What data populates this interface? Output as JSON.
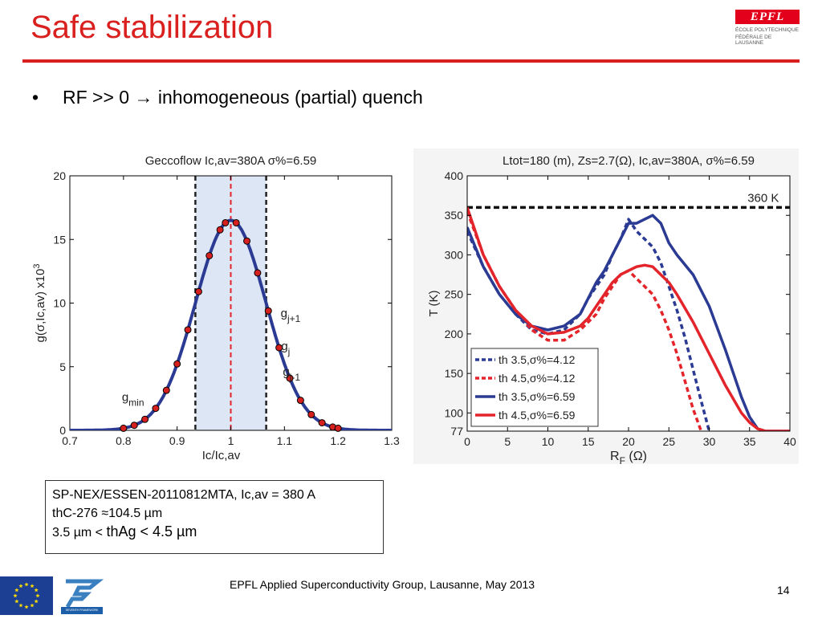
{
  "slide": {
    "title": "Safe stabilization",
    "bullet": "RF >> 0 → inhomogeneous (partial) quench",
    "logo_text": "EPFL",
    "logo_line1": "ÉCOLE POLYTECHNIQUE",
    "logo_line2": "FÉDÉRALE DE LAUSANNE",
    "note_line1": "SP-NEX/ESSEN-20110812MTA, Ic,av = 380 A",
    "note_line2": "thC-276 ≈104.5 µm",
    "note_line3a": "3.5 µm < ",
    "note_line3b": "thAg < 4.5 µm",
    "footer": "EPFL Applied Superconductivity Group, Lausanne, May 2013",
    "page_number": "14",
    "fp7_text": "SEVENTH FRAMEWORK PROGRAMME",
    "colors": {
      "accent": "#d9201f",
      "blue": "#2b3a93",
      "red": "#e3242b",
      "band": "#dce6f4",
      "eu_blue": "#1c3f94"
    }
  },
  "chart_data": [
    {
      "type": "line",
      "title": "Geccoflow Ic,av=380A σ%=6.59",
      "xlabel": "Ic/Ic,av",
      "ylabel": "g(σ,Ic,av) x10",
      "ylabel_exp": "3",
      "xlim": [
        0.7,
        1.3
      ],
      "ylim": [
        0,
        20
      ],
      "xticks": [
        "0.7",
        "0.8",
        "0.9",
        "1",
        "1.1",
        "1.2",
        "1.3"
      ],
      "yticks": [
        "0",
        "5",
        "10",
        "15",
        "20"
      ],
      "gaussian": {
        "mean": 1.0,
        "sigma": 0.0659,
        "peak": 16.5
      },
      "points_x": [
        0.8,
        0.82,
        0.84,
        0.86,
        0.88,
        0.9,
        0.92,
        0.94,
        0.96,
        0.98,
        0.99,
        1.01,
        1.03,
        1.05,
        1.07,
        1.09,
        1.11,
        1.13,
        1.15,
        1.17,
        1.19,
        1.2
      ],
      "band": [
        0.934,
        1.066
      ],
      "center_line": 1.0,
      "annotations": [
        {
          "base": "g",
          "sub": "j+1",
          "x": 1.043,
          "y": 8.9
        },
        {
          "base": "g",
          "sub": "j",
          "x": 1.044,
          "y": 6.3
        },
        {
          "base": "g",
          "sub": "j-1",
          "x": 1.047,
          "y": 4.3
        },
        {
          "base": "g",
          "sub": "min",
          "x": 0.747,
          "y": 2.3
        }
      ]
    },
    {
      "type": "line",
      "title": "Ltot=180 (m), Zs=2.7(Ω), Ic,av=380A, σ%=6.59",
      "xlabel": "R",
      "xlabel_sub": "F",
      "xlabel_unit": " (Ω)",
      "ylabel": "T (K)",
      "xlim": [
        0,
        40
      ],
      "ylim": [
        77,
        400
      ],
      "xticks": [
        "0",
        "5",
        "10",
        "15",
        "20",
        "25",
        "30",
        "35",
        "40"
      ],
      "yticks": [
        "77",
        "100",
        "150",
        "200",
        "250",
        "300",
        "350",
        "400"
      ],
      "reference": {
        "y": 360,
        "label": "360 K"
      },
      "legend_position": "bottom-left",
      "series": [
        {
          "name": "th 3.5,σ%=4.12",
          "style": "dashed",
          "color": "#2b3a93",
          "x": [
            0,
            2,
            4,
            6,
            8,
            10,
            12,
            14,
            15,
            16,
            17,
            18,
            19,
            20,
            21,
            22,
            23,
            24,
            25,
            26,
            27,
            28,
            29,
            30
          ],
          "y": [
            330,
            285,
            250,
            225,
            205,
            200,
            205,
            225,
            245,
            260,
            275,
            300,
            320,
            345,
            330,
            320,
            310,
            290,
            260,
            230,
            195,
            155,
            115,
            77
          ]
        },
        {
          "name": "th 4.5,σ%=4.12",
          "style": "dashed",
          "color": "#e3242b",
          "x": [
            0,
            2,
            4,
            6,
            8,
            10,
            12,
            14,
            15,
            16,
            17,
            18,
            19,
            20,
            21,
            22,
            23,
            24,
            25,
            26,
            27,
            28,
            29
          ],
          "y": [
            355,
            300,
            260,
            230,
            205,
            192,
            192,
            205,
            215,
            225,
            245,
            260,
            275,
            280,
            270,
            260,
            250,
            230,
            205,
            175,
            140,
            105,
            77
          ]
        },
        {
          "name": "th 3.5,σ%=6.59",
          "style": "solid",
          "color": "#2b3a93",
          "x": [
            0,
            2,
            4,
            6,
            8,
            10,
            12,
            14,
            15,
            16,
            17,
            18,
            19,
            20,
            21,
            22,
            23,
            24,
            25,
            26,
            28,
            30,
            32,
            34,
            35,
            36,
            37,
            40
          ],
          "y": [
            335,
            285,
            250,
            225,
            210,
            205,
            210,
            225,
            245,
            265,
            280,
            300,
            320,
            340,
            340,
            345,
            350,
            340,
            315,
            300,
            275,
            235,
            180,
            120,
            95,
            80,
            77,
            77
          ]
        },
        {
          "name": "th 4.5,σ%=6.59",
          "style": "solid",
          "color": "#e3242b",
          "x": [
            0,
            2,
            4,
            6,
            8,
            10,
            12,
            14,
            15,
            16,
            17,
            18,
            19,
            20,
            21,
            22,
            23,
            24,
            25,
            26,
            28,
            30,
            32,
            34,
            35,
            36,
            37,
            40
          ],
          "y": [
            360,
            300,
            260,
            230,
            210,
            200,
            202,
            210,
            220,
            235,
            250,
            265,
            275,
            280,
            285,
            287,
            285,
            275,
            265,
            250,
            215,
            175,
            135,
            100,
            88,
            80,
            77,
            77
          ]
        }
      ]
    }
  ]
}
